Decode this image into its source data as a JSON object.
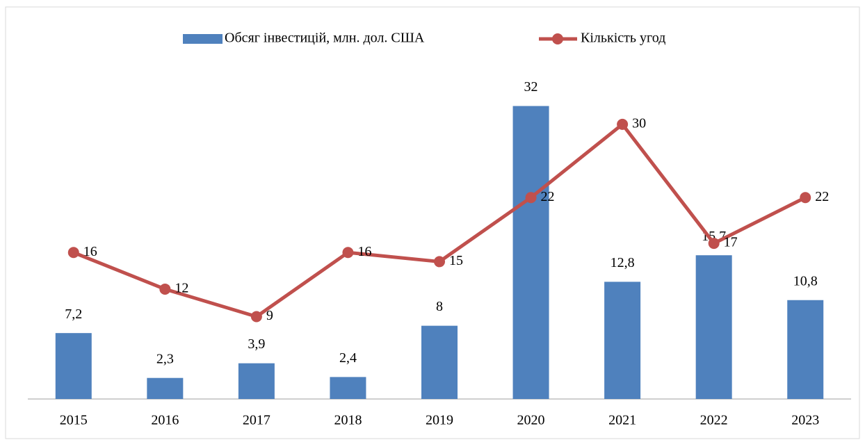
{
  "chart_data": {
    "type": "combo",
    "categories": [
      "2015",
      "2016",
      "2017",
      "2018",
      "2019",
      "2020",
      "2021",
      "2022",
      "2023"
    ],
    "series": [
      {
        "name": "Обсяг інвестицій, млн. дол. США",
        "type": "bar",
        "color": "#4f81bd",
        "axis": "y",
        "values": [
          7.2,
          2.3,
          3.9,
          2.4,
          8,
          32,
          12.8,
          15.7,
          10.8
        ],
        "value_labels": [
          "7,2",
          "2,3",
          "3,9",
          "2,4",
          "8",
          "32",
          "12,8",
          "15,7",
          "10,8"
        ]
      },
      {
        "name": "Кількість угод",
        "type": "line",
        "color": "#c0504d",
        "axis": "y2",
        "values": [
          16,
          12,
          9,
          16,
          15,
          22,
          30,
          17,
          22
        ]
      }
    ],
    "ylim": [
      0,
      35
    ],
    "y2lim": [
      0,
      35
    ],
    "legend": "top"
  }
}
